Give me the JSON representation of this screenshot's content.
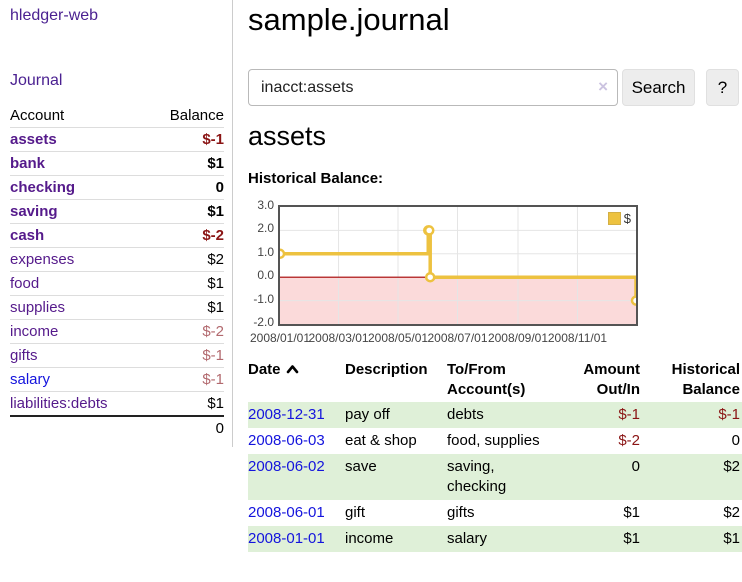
{
  "colors": {
    "link_purple": "#551a8b",
    "link_blue": "#1414dd",
    "negative_bold_red": "#8a1414",
    "negative_soft_red": "#b2696e",
    "row_stripe_green": "#dff0d8",
    "button_gray": "#ededed"
  },
  "sidebar": {
    "app_title": "hledger-web",
    "journal_link": "Journal",
    "account_header": "Account",
    "balance_header": "Balance",
    "accounts": [
      {
        "name": "assets",
        "level": 1,
        "bold": true,
        "blue": false,
        "balance": "$-1",
        "neg": true
      },
      {
        "name": "bank",
        "level": 2,
        "bold": true,
        "blue": false,
        "balance": "$1",
        "neg": false
      },
      {
        "name": "checking",
        "level": 3,
        "bold": true,
        "blue": false,
        "balance": "0",
        "neg": false
      },
      {
        "name": "saving",
        "level": 3,
        "bold": true,
        "blue": false,
        "balance": "$1",
        "neg": false
      },
      {
        "name": "cash",
        "level": 2,
        "bold": true,
        "blue": false,
        "balance": "$-2",
        "neg": true
      },
      {
        "name": "expenses",
        "level": 1,
        "bold": false,
        "blue": false,
        "balance": "$2",
        "neg": false
      },
      {
        "name": "food",
        "level": 2,
        "bold": false,
        "blue": false,
        "balance": "$1",
        "neg": false
      },
      {
        "name": "supplies",
        "level": 2,
        "bold": false,
        "blue": false,
        "balance": "$1",
        "neg": false
      },
      {
        "name": "income",
        "level": 1,
        "bold": false,
        "blue": false,
        "balance": "$-2",
        "neg": true
      },
      {
        "name": "gifts",
        "level": 2,
        "bold": false,
        "blue": false,
        "balance": "$-1",
        "neg": true
      },
      {
        "name": "salary",
        "level": 2,
        "bold": false,
        "blue": true,
        "balance": "$-1",
        "neg": true
      },
      {
        "name": "liabilities:debts",
        "level": 1,
        "bold": false,
        "blue": false,
        "balance": "$1",
        "neg": false
      }
    ],
    "total_balance": "0"
  },
  "header": {
    "title": "sample.journal"
  },
  "search": {
    "value": "inacct:assets",
    "clear_icon": "×",
    "search_button": "Search",
    "help_button": "?"
  },
  "account_page": {
    "heading": "assets",
    "chart_label": "Historical Balance:"
  },
  "chart_data": {
    "type": "line",
    "step": true,
    "title": "Historical Balance",
    "xlim": [
      "2008-01-01",
      "2008-12-31"
    ],
    "ylim": [
      -2.0,
      3.0
    ],
    "yticks": [
      "3.0",
      "2.0",
      "1.0",
      "0.0",
      "-1.0",
      "-2.0"
    ],
    "ytick_values": [
      3,
      2,
      1,
      0,
      -1,
      -2
    ],
    "xticks": [
      "2008/01/01",
      "2008/03/01",
      "2008/05/01",
      "2008/07/01",
      "2008/09/01",
      "2008/11/01"
    ],
    "legend": [
      {
        "label": "$",
        "color": "#edc240"
      }
    ],
    "legend_position": "top-right",
    "grid": true,
    "series": [
      {
        "name": "$",
        "points": [
          [
            "2008-01-01",
            1
          ],
          [
            "2008-06-01",
            2
          ],
          [
            "2008-06-02",
            2
          ],
          [
            "2008-06-03",
            0
          ],
          [
            "2008-12-31",
            -1
          ]
        ]
      }
    ],
    "colors": {
      "line": "#edc240",
      "marker_fill": "#ffffff",
      "negative_fill": "#fbdada",
      "zero_line": "#a40000",
      "grid": "#e5e5e5",
      "border": "#545454"
    }
  },
  "register": {
    "headers": {
      "date": "Date",
      "description": "Description",
      "accounts": "To/From Account(s)",
      "amount": "Amount Out/In",
      "balance": "Historical Balance"
    },
    "rows": [
      {
        "date": "2008-12-31",
        "description": "pay off",
        "accounts": "debts",
        "amount": "$-1",
        "amount_neg": true,
        "balance": "$-1",
        "balance_neg": true
      },
      {
        "date": "2008-06-03",
        "description": "eat & shop",
        "accounts": "food, supplies",
        "amount": "$-2",
        "amount_neg": true,
        "balance": "0",
        "balance_neg": false
      },
      {
        "date": "2008-06-02",
        "description": "save",
        "accounts": "saving, checking",
        "amount": "0",
        "amount_neg": false,
        "balance": "$2",
        "balance_neg": false
      },
      {
        "date": "2008-06-01",
        "description": "gift",
        "accounts": "gifts",
        "amount": "$1",
        "amount_neg": false,
        "balance": "$2",
        "balance_neg": false
      },
      {
        "date": "2008-01-01",
        "description": "income",
        "accounts": "salary",
        "amount": "$1",
        "amount_neg": false,
        "balance": "$1",
        "balance_neg": false
      }
    ]
  }
}
